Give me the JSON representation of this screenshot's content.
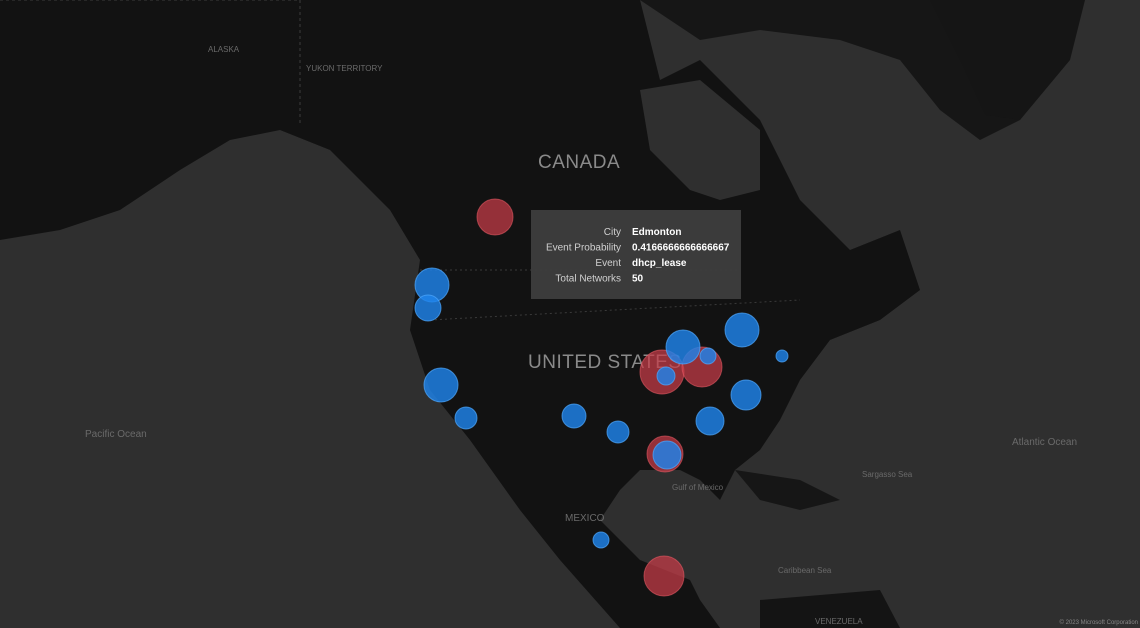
{
  "map": {
    "labels": {
      "canada": "CANADA",
      "united_states": "UNITED STATES",
      "mexico": "MEXICO",
      "pacific_ocean": "Pacific Ocean",
      "atlantic_ocean": "Atlantic Ocean",
      "gulf_of_mexico": "Gulf of Mexico",
      "caribbean_sea": "Caribbean Sea",
      "sargasso_sea": "Sargasso Sea",
      "venezuela": "VENEZUELA",
      "alaska": "ALASKA",
      "yukon": "YUKON TERRITORY"
    },
    "tooltip": {
      "rows": [
        {
          "label": "City",
          "value": "Edmonton"
        },
        {
          "label": "Event Probability",
          "value": 0.4166666666666667
        },
        {
          "label": "Event",
          "value": "dhcp_lease"
        },
        {
          "label": "Total Networks",
          "value": 50
        }
      ]
    },
    "copyright": "© 2023 Microsoft Corporation"
  }
}
